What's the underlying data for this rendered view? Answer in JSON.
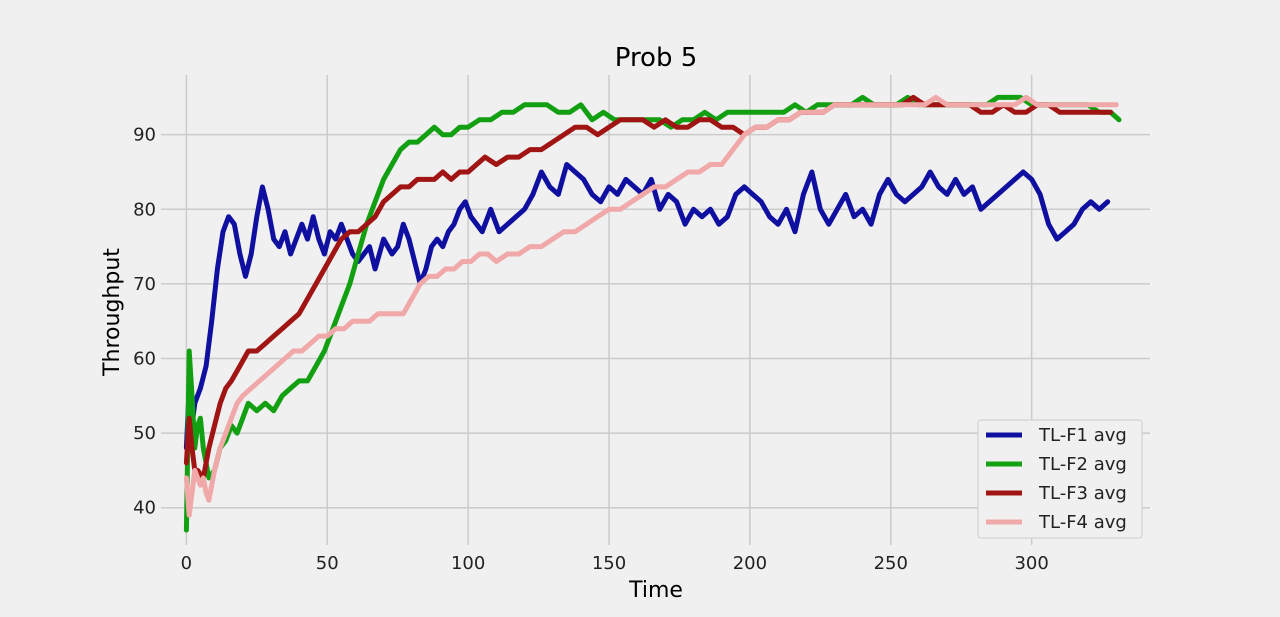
{
  "chart_data": {
    "type": "line",
    "title": "Prob 5",
    "xlabel": "Time",
    "ylabel": "Throughput",
    "xlim": [
      -9,
      342
    ],
    "ylim": [
      35,
      98
    ],
    "xticks": [
      0,
      50,
      100,
      150,
      200,
      250,
      300
    ],
    "yticks": [
      40,
      50,
      60,
      70,
      80,
      90
    ],
    "grid": true,
    "legend_position": "lower-right",
    "series": [
      {
        "name": "TL-F1 avg",
        "color": "#1010a0",
        "x": [
          0,
          1,
          2,
          3,
          5,
          7,
          9,
          11,
          13,
          15,
          17,
          19,
          21,
          23,
          25,
          27,
          29,
          31,
          33,
          35,
          37,
          39,
          41,
          43,
          45,
          47,
          49,
          51,
          53,
          55,
          57,
          59,
          61,
          63,
          65,
          67,
          70,
          73,
          75,
          77,
          79,
          81,
          83,
          85,
          87,
          89,
          91,
          93,
          95,
          97,
          99,
          101,
          103,
          105,
          108,
          111,
          114,
          117,
          120,
          123,
          126,
          129,
          132,
          135,
          138,
          141,
          144,
          147,
          150,
          153,
          156,
          159,
          162,
          165,
          168,
          171,
          174,
          177,
          180,
          183,
          186,
          189,
          192,
          195,
          198,
          201,
          204,
          207,
          210,
          213,
          216,
          219,
          222,
          225,
          228,
          231,
          234,
          237,
          240,
          243,
          246,
          249,
          252,
          255,
          258,
          261,
          264,
          267,
          270,
          273,
          276,
          279,
          282,
          285,
          288,
          291,
          294,
          297,
          300,
          303,
          306,
          309,
          312,
          315,
          318,
          321,
          324,
          327
        ],
        "y": [
          48,
          56,
          51,
          54,
          56,
          59,
          65,
          72,
          77,
          79,
          78,
          74,
          71,
          74,
          79,
          83,
          80,
          76,
          75,
          77,
          74,
          76,
          78,
          76,
          79,
          76,
          74,
          77,
          76,
          78,
          76,
          74,
          73,
          74,
          75,
          72,
          76,
          74,
          75,
          78,
          76,
          73,
          70,
          72,
          75,
          76,
          75,
          77,
          78,
          80,
          81,
          79,
          78,
          77,
          80,
          77,
          78,
          79,
          80,
          82,
          85,
          83,
          82,
          86,
          85,
          84,
          82,
          81,
          83,
          82,
          84,
          83,
          82,
          84,
          80,
          82,
          81,
          78,
          80,
          79,
          80,
          78,
          79,
          82,
          83,
          82,
          81,
          79,
          78,
          80,
          77,
          82,
          85,
          80,
          78,
          80,
          82,
          79,
          80,
          78,
          82,
          84,
          82,
          81,
          82,
          83,
          85,
          83,
          82,
          84,
          82,
          83,
          80,
          81,
          82,
          83,
          84,
          85,
          84,
          82,
          78,
          76,
          77,
          78,
          80,
          81,
          80,
          81
        ]
      },
      {
        "name": "TL-F2 avg",
        "color": "#12a012",
        "x": [
          0,
          1,
          2,
          3,
          4,
          5,
          6,
          7,
          8,
          10,
          12,
          14,
          16,
          18,
          20,
          22,
          25,
          28,
          31,
          34,
          37,
          40,
          43,
          46,
          49,
          52,
          55,
          58,
          61,
          64,
          67,
          70,
          73,
          76,
          79,
          82,
          85,
          88,
          91,
          94,
          97,
          100,
          104,
          108,
          112,
          116,
          120,
          124,
          128,
          132,
          136,
          140,
          144,
          148,
          152,
          156,
          160,
          164,
          168,
          172,
          176,
          180,
          184,
          188,
          192,
          196,
          200,
          204,
          208,
          212,
          216,
          220,
          224,
          228,
          232,
          236,
          240,
          244,
          248,
          252,
          256,
          260,
          264,
          268,
          272,
          276,
          280,
          284,
          288,
          292,
          296,
          300,
          304,
          308,
          312,
          316,
          320,
          324,
          328,
          331
        ],
        "y": [
          37,
          61,
          55,
          48,
          51,
          52,
          48,
          46,
          44,
          45,
          48,
          49,
          51,
          50,
          52,
          54,
          53,
          54,
          53,
          55,
          56,
          57,
          57,
          59,
          61,
          64,
          67,
          70,
          74,
          78,
          81,
          84,
          86,
          88,
          89,
          89,
          90,
          91,
          90,
          90,
          91,
          91,
          92,
          92,
          93,
          93,
          94,
          94,
          94,
          93,
          93,
          94,
          92,
          93,
          92,
          92,
          92,
          92,
          92,
          91,
          92,
          92,
          93,
          92,
          93,
          93,
          93,
          93,
          93,
          93,
          94,
          93,
          94,
          94,
          94,
          94,
          95,
          94,
          94,
          94,
          95,
          94,
          94,
          94,
          94,
          94,
          94,
          94,
          95,
          95,
          95,
          94,
          94,
          94,
          94,
          94,
          94,
          93,
          93,
          92
        ]
      },
      {
        "name": "TL-F3 avg",
        "color": "#a01414",
        "x": [
          0,
          1,
          2,
          3,
          4,
          6,
          8,
          10,
          12,
          14,
          16,
          19,
          22,
          25,
          28,
          31,
          34,
          37,
          40,
          43,
          46,
          49,
          52,
          55,
          58,
          61,
          64,
          67,
          70,
          73,
          76,
          79,
          82,
          85,
          88,
          91,
          94,
          97,
          100,
          103,
          106,
          110,
          114,
          118,
          122,
          126,
          130,
          134,
          138,
          142,
          146,
          150,
          154,
          158,
          162,
          166,
          170,
          174,
          178,
          182,
          186,
          190,
          194,
          198,
          202,
          206,
          210,
          214,
          218,
          222,
          226,
          230,
          234,
          238,
          242,
          246,
          250,
          254,
          258,
          262,
          266,
          270,
          274,
          278,
          282,
          286,
          290,
          294,
          298,
          302,
          306,
          310,
          314,
          318,
          322,
          326,
          328
        ],
        "y": [
          46,
          52,
          48,
          45,
          45,
          44,
          48,
          51,
          54,
          56,
          57,
          59,
          61,
          61,
          62,
          63,
          64,
          65,
          66,
          68,
          70,
          72,
          74,
          76,
          77,
          77,
          78,
          79,
          81,
          82,
          83,
          83,
          84,
          84,
          84,
          85,
          84,
          85,
          85,
          86,
          87,
          86,
          87,
          87,
          88,
          88,
          89,
          90,
          91,
          91,
          90,
          91,
          92,
          92,
          92,
          91,
          92,
          91,
          91,
          92,
          92,
          91,
          91,
          90,
          91,
          91,
          92,
          92,
          93,
          93,
          93,
          94,
          94,
          94,
          94,
          94,
          94,
          94,
          95,
          94,
          94,
          94,
          94,
          94,
          93,
          93,
          94,
          93,
          93,
          94,
          94,
          93,
          93,
          93,
          93,
          93,
          93
        ]
      },
      {
        "name": "TL-F4 avg",
        "color": "#f0a8a8",
        "x": [
          0,
          1,
          2,
          3,
          4,
          5,
          6,
          7,
          8,
          9,
          10,
          12,
          14,
          16,
          18,
          20,
          23,
          26,
          29,
          32,
          35,
          38,
          41,
          44,
          47,
          50,
          53,
          56,
          59,
          62,
          65,
          68,
          71,
          74,
          77,
          80,
          83,
          86,
          89,
          92,
          95,
          98,
          101,
          104,
          107,
          110,
          114,
          118,
          122,
          126,
          130,
          134,
          138,
          142,
          146,
          150,
          154,
          158,
          162,
          166,
          170,
          174,
          178,
          182,
          186,
          190,
          194,
          198,
          202,
          206,
          210,
          214,
          218,
          222,
          226,
          230,
          234,
          238,
          242,
          246,
          250,
          254,
          258,
          262,
          266,
          270,
          274,
          278,
          282,
          286,
          290,
          294,
          298,
          302,
          306,
          310,
          314,
          318,
          322,
          326,
          330
        ],
        "y": [
          44,
          39,
          42,
          45,
          44,
          43,
          44,
          42,
          41,
          43,
          45,
          48,
          50,
          52,
          54,
          55,
          56,
          57,
          58,
          59,
          60,
          61,
          61,
          62,
          63,
          63,
          64,
          64,
          65,
          65,
          65,
          66,
          66,
          66,
          66,
          68,
          70,
          71,
          71,
          72,
          72,
          73,
          73,
          74,
          74,
          73,
          74,
          74,
          75,
          75,
          76,
          77,
          77,
          78,
          79,
          80,
          80,
          81,
          82,
          83,
          83,
          84,
          85,
          85,
          86,
          86,
          88,
          90,
          91,
          91,
          92,
          92,
          93,
          93,
          93,
          94,
          94,
          94,
          94,
          94,
          94,
          94,
          94,
          94,
          95,
          94,
          94,
          94,
          94,
          94,
          94,
          94,
          95,
          94,
          94,
          94,
          94,
          94,
          94,
          94,
          94
        ]
      }
    ]
  }
}
